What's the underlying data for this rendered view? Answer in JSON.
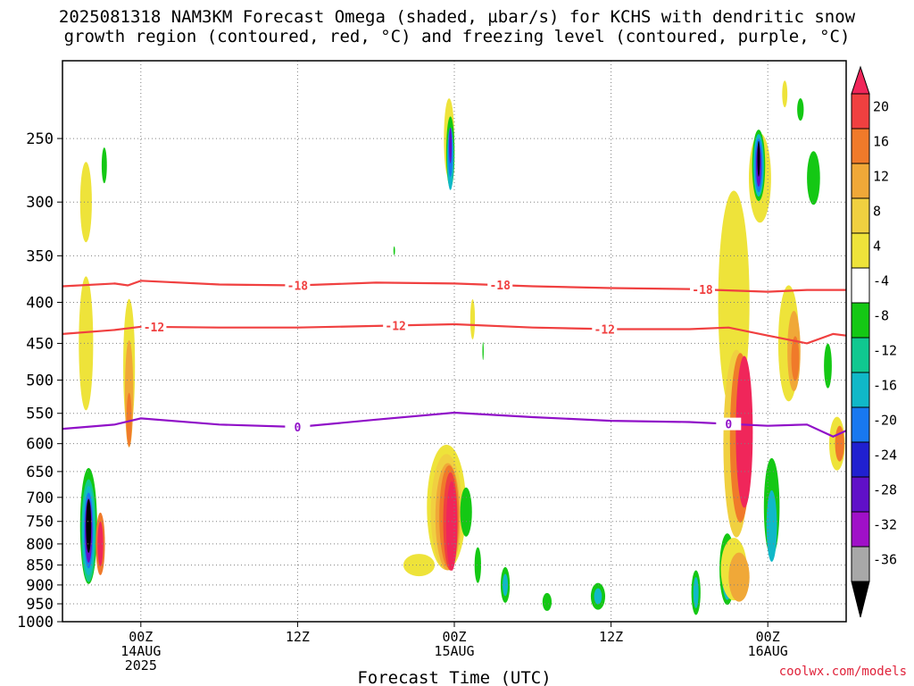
{
  "chart_data": {
    "type": "heatmap",
    "title_line1": "2025081318 NAM3KM Forecast Omega (shaded, µbar/s) for KCHS with dendritic snow",
    "title_line2": "growth region (contoured, red, °C) and freezing level (contoured, purple, °C)",
    "xlabel": "Forecast Time (UTC)",
    "ylabel": "",
    "attribution": "coolwx.com/models",
    "y_ticks": [
      250,
      300,
      350,
      400,
      450,
      500,
      550,
      600,
      650,
      700,
      750,
      800,
      850,
      900,
      950,
      1000
    ],
    "y_range_hpa": [
      200,
      1000
    ],
    "y_scale": "log-pressure",
    "x_ticks": [
      {
        "hour": 6,
        "label1": "00Z",
        "label2": "14AUG",
        "label3": "2025"
      },
      {
        "hour": 18,
        "label1": "12Z",
        "label2": "",
        "label3": ""
      },
      {
        "hour": 30,
        "label1": "00Z",
        "label2": "15AUG",
        "label3": ""
      },
      {
        "hour": 42,
        "label1": "12Z",
        "label2": "",
        "label3": ""
      },
      {
        "hour": 54,
        "label1": "00Z",
        "label2": "16AUG",
        "label3": ""
      }
    ],
    "x_range_hours": [
      0,
      60
    ],
    "grid": true,
    "colorbar": {
      "labels": [
        "20",
        "16",
        "12",
        "8",
        "4",
        "-4",
        "-8",
        "-12",
        "-16",
        "-20",
        "-24",
        "-28",
        "-32",
        "-36"
      ],
      "colors": [
        "#f0265a",
        "#f04040",
        "#f07a2a",
        "#f0a838",
        "#f0d040",
        "#eee33a",
        "#ffffff",
        "#14c814",
        "#10c890",
        "#10b8c8",
        "#1878f0",
        "#2020d0",
        "#6010c8",
        "#a010c8",
        "#a8a8a8",
        "#000000"
      ]
    },
    "contours": [
      {
        "label": "-18",
        "color": "#f04040",
        "points": [
          [
            0,
            382
          ],
          [
            4,
            379
          ],
          [
            5,
            381
          ],
          [
            6,
            376
          ],
          [
            12,
            380
          ],
          [
            18,
            381
          ],
          [
            24,
            378
          ],
          [
            30,
            379
          ],
          [
            36,
            382
          ],
          [
            42,
            384
          ],
          [
            48,
            385
          ],
          [
            54,
            388
          ],
          [
            57,
            386
          ],
          [
            60,
            386
          ]
        ]
      },
      {
        "label": "-12",
        "color": "#f04040",
        "points": [
          [
            0,
            438
          ],
          [
            4,
            433
          ],
          [
            6,
            429
          ],
          [
            12,
            430
          ],
          [
            18,
            430
          ],
          [
            24,
            428
          ],
          [
            30,
            426
          ],
          [
            36,
            430
          ],
          [
            42,
            432
          ],
          [
            48,
            432
          ],
          [
            51,
            430
          ],
          [
            54,
            440
          ],
          [
            57,
            450
          ],
          [
            59,
            438
          ],
          [
            60,
            440
          ]
        ]
      },
      {
        "label": "0",
        "color": "#9010c8",
        "points": [
          [
            0,
            575
          ],
          [
            4,
            568
          ],
          [
            6,
            558
          ],
          [
            12,
            568
          ],
          [
            18,
            572
          ],
          [
            24,
            560
          ],
          [
            30,
            549
          ],
          [
            36,
            556
          ],
          [
            42,
            562
          ],
          [
            48,
            564
          ],
          [
            54,
            570
          ],
          [
            57,
            568
          ],
          [
            59,
            588
          ],
          [
            60,
            578
          ]
        ]
      }
    ]
  }
}
